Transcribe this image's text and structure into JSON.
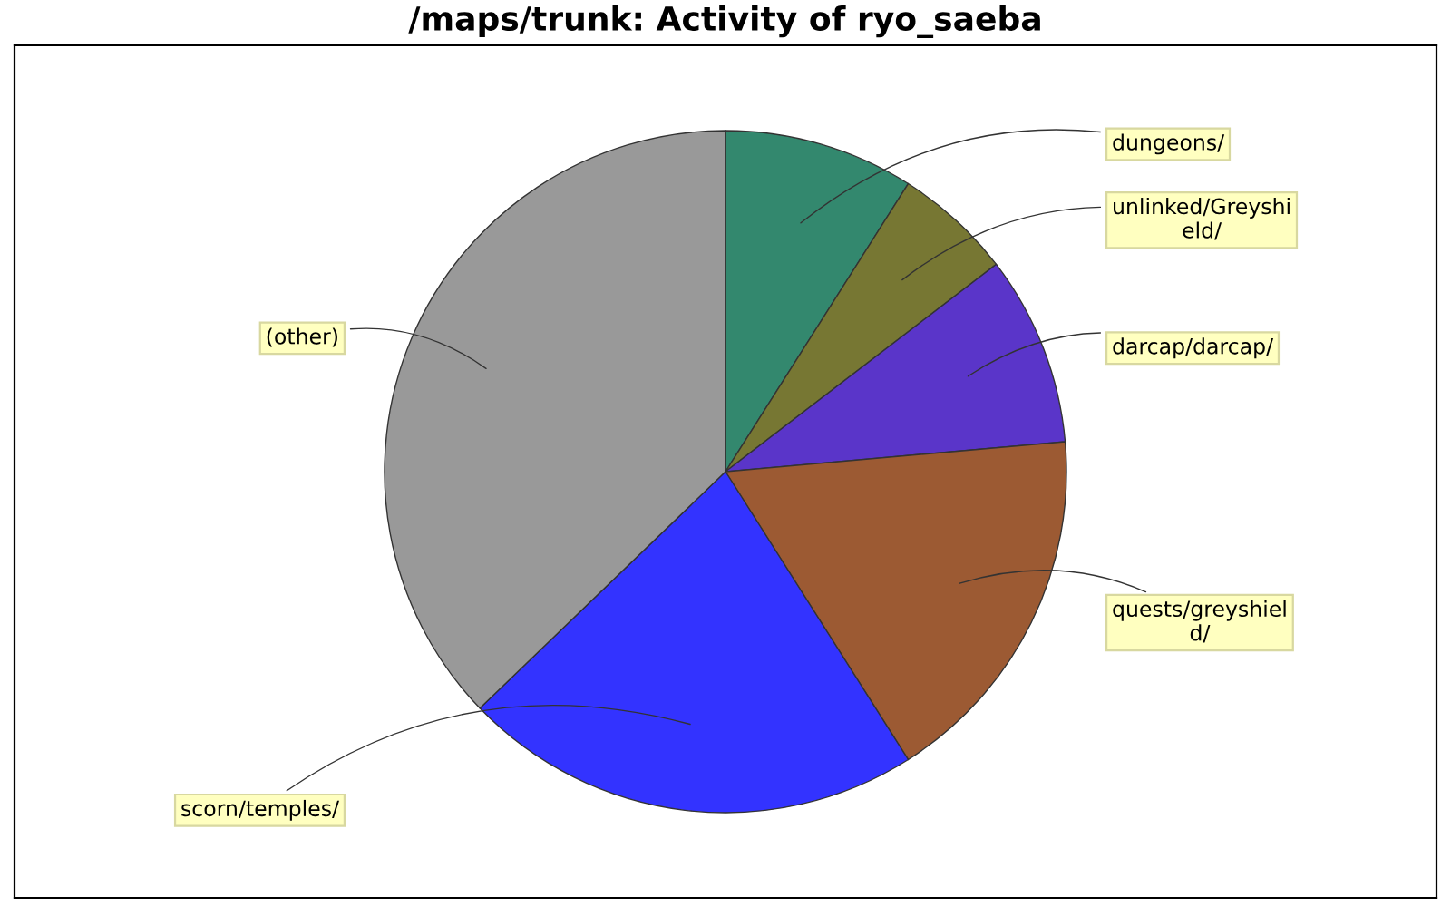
{
  "chart_data": {
    "type": "pie",
    "title": "/maps/trunk: Activity of ryo_saeba",
    "categories": [
      "dungeons/",
      "unlinked/Greyshi\neld/",
      "darcap/darcap/",
      "quests/greyshiel\nd/",
      "scorn/temples/",
      "(other)"
    ],
    "values": [
      9.0,
      5.6,
      9.0,
      17.4,
      21.8,
      37.2
    ],
    "colors": [
      "#33886e",
      "#777733",
      "#5a35c9",
      "#9c5a33",
      "#3333ff",
      "#999999"
    ]
  }
}
